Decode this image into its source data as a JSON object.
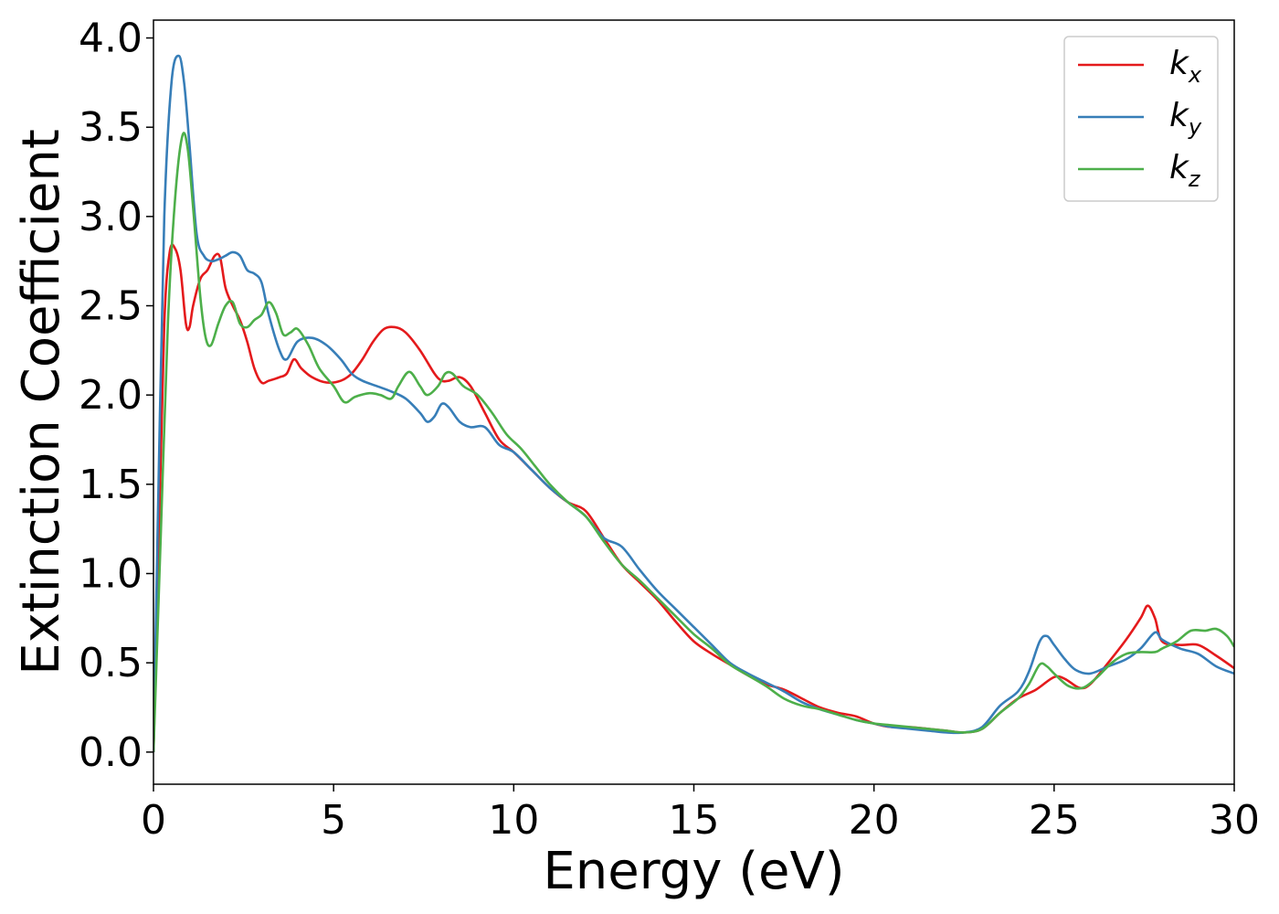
{
  "chart_data": {
    "type": "line",
    "title": "",
    "xlabel": "Energy (eV)",
    "ylabel": "Extinction Coefficient",
    "xlim": [
      0,
      30
    ],
    "ylim": [
      -0.18,
      4.1
    ],
    "xticks": [
      0,
      5,
      10,
      15,
      20,
      25,
      30
    ],
    "xtick_labels": [
      "0",
      "5",
      "10",
      "15",
      "20",
      "25",
      "30"
    ],
    "yticks": [
      0.0,
      0.5,
      1.0,
      1.5,
      2.0,
      2.5,
      3.0,
      3.5,
      4.0
    ],
    "ytick_labels": [
      "0.0",
      "0.5",
      "1.0",
      "1.5",
      "2.0",
      "2.5",
      "3.0",
      "3.5",
      "4.0"
    ],
    "grid": false,
    "legend_position": "top-right",
    "series": [
      {
        "name": "k_x",
        "label_main": "k",
        "label_sub": "x",
        "color": "#e41a1c",
        "points": [
          [
            0,
            0
          ],
          [
            0.15,
            1.2
          ],
          [
            0.3,
            2.4
          ],
          [
            0.45,
            2.8
          ],
          [
            0.6,
            2.82
          ],
          [
            0.75,
            2.7
          ],
          [
            0.9,
            2.4
          ],
          [
            1.0,
            2.38
          ],
          [
            1.1,
            2.5
          ],
          [
            1.3,
            2.65
          ],
          [
            1.5,
            2.7
          ],
          [
            1.7,
            2.78
          ],
          [
            1.85,
            2.77
          ],
          [
            2.0,
            2.6
          ],
          [
            2.2,
            2.5
          ],
          [
            2.4,
            2.42
          ],
          [
            2.6,
            2.3
          ],
          [
            2.8,
            2.15
          ],
          [
            3.0,
            2.07
          ],
          [
            3.2,
            2.08
          ],
          [
            3.5,
            2.1
          ],
          [
            3.7,
            2.12
          ],
          [
            3.9,
            2.2
          ],
          [
            4.1,
            2.15
          ],
          [
            4.4,
            2.1
          ],
          [
            4.8,
            2.07
          ],
          [
            5.2,
            2.08
          ],
          [
            5.5,
            2.12
          ],
          [
            5.8,
            2.2
          ],
          [
            6.1,
            2.3
          ],
          [
            6.4,
            2.37
          ],
          [
            6.7,
            2.38
          ],
          [
            7.0,
            2.35
          ],
          [
            7.4,
            2.25
          ],
          [
            7.8,
            2.12
          ],
          [
            8.0,
            2.08
          ],
          [
            8.2,
            2.08
          ],
          [
            8.5,
            2.1
          ],
          [
            8.8,
            2.05
          ],
          [
            9.2,
            1.9
          ],
          [
            9.6,
            1.75
          ],
          [
            10.0,
            1.68
          ],
          [
            10.5,
            1.58
          ],
          [
            11.0,
            1.48
          ],
          [
            11.5,
            1.4
          ],
          [
            12.0,
            1.35
          ],
          [
            12.5,
            1.2
          ],
          [
            13.0,
            1.05
          ],
          [
            13.5,
            0.95
          ],
          [
            14.0,
            0.85
          ],
          [
            14.5,
            0.73
          ],
          [
            15.0,
            0.62
          ],
          [
            15.5,
            0.55
          ],
          [
            16.0,
            0.49
          ],
          [
            16.5,
            0.43
          ],
          [
            17.0,
            0.38
          ],
          [
            17.5,
            0.35
          ],
          [
            18.0,
            0.3
          ],
          [
            18.5,
            0.25
          ],
          [
            19.0,
            0.22
          ],
          [
            19.5,
            0.2
          ],
          [
            20.0,
            0.16
          ],
          [
            20.5,
            0.14
          ],
          [
            21.0,
            0.14
          ],
          [
            21.5,
            0.13
          ],
          [
            22.0,
            0.12
          ],
          [
            22.5,
            0.11
          ],
          [
            23.0,
            0.13
          ],
          [
            23.5,
            0.22
          ],
          [
            24.0,
            0.3
          ],
          [
            24.5,
            0.35
          ],
          [
            25.0,
            0.42
          ],
          [
            25.3,
            0.41
          ],
          [
            25.7,
            0.36
          ],
          [
            26.0,
            0.38
          ],
          [
            26.5,
            0.5
          ],
          [
            27.0,
            0.63
          ],
          [
            27.4,
            0.75
          ],
          [
            27.6,
            0.82
          ],
          [
            27.8,
            0.75
          ],
          [
            28.0,
            0.62
          ],
          [
            28.5,
            0.6
          ],
          [
            29.0,
            0.6
          ],
          [
            29.5,
            0.54
          ],
          [
            30.0,
            0.47
          ]
        ]
      },
      {
        "name": "k_y",
        "label_main": "k",
        "label_sub": "y",
        "color": "#377eb8",
        "points": [
          [
            0,
            0
          ],
          [
            0.15,
            1.6
          ],
          [
            0.3,
            3.0
          ],
          [
            0.5,
            3.75
          ],
          [
            0.7,
            3.9
          ],
          [
            0.85,
            3.75
          ],
          [
            1.0,
            3.4
          ],
          [
            1.2,
            2.9
          ],
          [
            1.4,
            2.78
          ],
          [
            1.6,
            2.75
          ],
          [
            1.8,
            2.76
          ],
          [
            2.0,
            2.78
          ],
          [
            2.2,
            2.8
          ],
          [
            2.4,
            2.78
          ],
          [
            2.6,
            2.7
          ],
          [
            2.8,
            2.68
          ],
          [
            3.0,
            2.63
          ],
          [
            3.2,
            2.45
          ],
          [
            3.5,
            2.25
          ],
          [
            3.7,
            2.2
          ],
          [
            4.0,
            2.3
          ],
          [
            4.4,
            2.32
          ],
          [
            4.8,
            2.28
          ],
          [
            5.2,
            2.2
          ],
          [
            5.5,
            2.12
          ],
          [
            5.8,
            2.08
          ],
          [
            6.2,
            2.05
          ],
          [
            6.6,
            2.02
          ],
          [
            7.0,
            1.98
          ],
          [
            7.4,
            1.9
          ],
          [
            7.6,
            1.85
          ],
          [
            7.8,
            1.88
          ],
          [
            8.0,
            1.95
          ],
          [
            8.2,
            1.93
          ],
          [
            8.5,
            1.85
          ],
          [
            8.8,
            1.82
          ],
          [
            9.2,
            1.82
          ],
          [
            9.6,
            1.72
          ],
          [
            10.0,
            1.68
          ],
          [
            10.5,
            1.58
          ],
          [
            11.0,
            1.48
          ],
          [
            11.5,
            1.4
          ],
          [
            12.0,
            1.32
          ],
          [
            12.5,
            1.2
          ],
          [
            13.0,
            1.15
          ],
          [
            13.5,
            1.02
          ],
          [
            14.0,
            0.9
          ],
          [
            14.5,
            0.8
          ],
          [
            15.0,
            0.7
          ],
          [
            15.5,
            0.6
          ],
          [
            16.0,
            0.5
          ],
          [
            16.5,
            0.44
          ],
          [
            17.0,
            0.39
          ],
          [
            17.5,
            0.34
          ],
          [
            18.0,
            0.28
          ],
          [
            18.5,
            0.24
          ],
          [
            19.0,
            0.21
          ],
          [
            19.5,
            0.18
          ],
          [
            20.0,
            0.16
          ],
          [
            20.5,
            0.14
          ],
          [
            21.0,
            0.13
          ],
          [
            21.5,
            0.12
          ],
          [
            22.0,
            0.11
          ],
          [
            22.5,
            0.11
          ],
          [
            23.0,
            0.14
          ],
          [
            23.5,
            0.26
          ],
          [
            24.0,
            0.34
          ],
          [
            24.3,
            0.45
          ],
          [
            24.6,
            0.62
          ],
          [
            24.8,
            0.65
          ],
          [
            25.0,
            0.6
          ],
          [
            25.3,
            0.52
          ],
          [
            25.6,
            0.46
          ],
          [
            26.0,
            0.44
          ],
          [
            26.5,
            0.48
          ],
          [
            27.0,
            0.52
          ],
          [
            27.4,
            0.58
          ],
          [
            27.8,
            0.67
          ],
          [
            28.0,
            0.63
          ],
          [
            28.5,
            0.58
          ],
          [
            29.0,
            0.55
          ],
          [
            29.5,
            0.48
          ],
          [
            30.0,
            0.44
          ]
        ]
      },
      {
        "name": "k_z",
        "label_main": "k",
        "label_sub": "z",
        "color": "#4daf4a",
        "points": [
          [
            0,
            0
          ],
          [
            0.2,
            1.2
          ],
          [
            0.4,
            2.4
          ],
          [
            0.6,
            3.1
          ],
          [
            0.8,
            3.45
          ],
          [
            0.95,
            3.38
          ],
          [
            1.1,
            3.05
          ],
          [
            1.3,
            2.55
          ],
          [
            1.45,
            2.32
          ],
          [
            1.6,
            2.28
          ],
          [
            1.8,
            2.4
          ],
          [
            2.0,
            2.5
          ],
          [
            2.2,
            2.52
          ],
          [
            2.4,
            2.4
          ],
          [
            2.6,
            2.38
          ],
          [
            2.8,
            2.42
          ],
          [
            3.0,
            2.45
          ],
          [
            3.2,
            2.52
          ],
          [
            3.4,
            2.46
          ],
          [
            3.6,
            2.34
          ],
          [
            3.8,
            2.35
          ],
          [
            4.0,
            2.37
          ],
          [
            4.3,
            2.28
          ],
          [
            4.6,
            2.15
          ],
          [
            5.0,
            2.05
          ],
          [
            5.3,
            1.96
          ],
          [
            5.6,
            1.99
          ],
          [
            6.0,
            2.01
          ],
          [
            6.3,
            2.0
          ],
          [
            6.6,
            1.98
          ],
          [
            6.8,
            2.05
          ],
          [
            7.1,
            2.13
          ],
          [
            7.4,
            2.05
          ],
          [
            7.6,
            2.0
          ],
          [
            7.9,
            2.05
          ],
          [
            8.1,
            2.12
          ],
          [
            8.3,
            2.12
          ],
          [
            8.6,
            2.05
          ],
          [
            9.0,
            2.0
          ],
          [
            9.4,
            1.9
          ],
          [
            9.8,
            1.78
          ],
          [
            10.2,
            1.7
          ],
          [
            10.6,
            1.6
          ],
          [
            11.0,
            1.5
          ],
          [
            11.5,
            1.4
          ],
          [
            12.0,
            1.32
          ],
          [
            12.5,
            1.18
          ],
          [
            13.0,
            1.05
          ],
          [
            13.5,
            0.96
          ],
          [
            14.0,
            0.86
          ],
          [
            14.5,
            0.76
          ],
          [
            15.0,
            0.66
          ],
          [
            15.5,
            0.58
          ],
          [
            16.0,
            0.49
          ],
          [
            16.5,
            0.43
          ],
          [
            17.0,
            0.37
          ],
          [
            17.5,
            0.3
          ],
          [
            18.0,
            0.26
          ],
          [
            18.5,
            0.24
          ],
          [
            19.0,
            0.21
          ],
          [
            19.5,
            0.18
          ],
          [
            20.0,
            0.16
          ],
          [
            20.5,
            0.15
          ],
          [
            21.0,
            0.14
          ],
          [
            21.5,
            0.13
          ],
          [
            22.0,
            0.12
          ],
          [
            22.5,
            0.11
          ],
          [
            23.0,
            0.13
          ],
          [
            23.5,
            0.22
          ],
          [
            24.0,
            0.3
          ],
          [
            24.3,
            0.38
          ],
          [
            24.6,
            0.49
          ],
          [
            24.8,
            0.48
          ],
          [
            25.0,
            0.44
          ],
          [
            25.4,
            0.37
          ],
          [
            25.8,
            0.36
          ],
          [
            26.2,
            0.42
          ],
          [
            26.6,
            0.5
          ],
          [
            27.0,
            0.55
          ],
          [
            27.4,
            0.56
          ],
          [
            27.8,
            0.56
          ],
          [
            28.0,
            0.58
          ],
          [
            28.4,
            0.62
          ],
          [
            28.8,
            0.68
          ],
          [
            29.2,
            0.68
          ],
          [
            29.5,
            0.69
          ],
          [
            29.8,
            0.65
          ],
          [
            30.0,
            0.59
          ]
        ]
      }
    ]
  }
}
